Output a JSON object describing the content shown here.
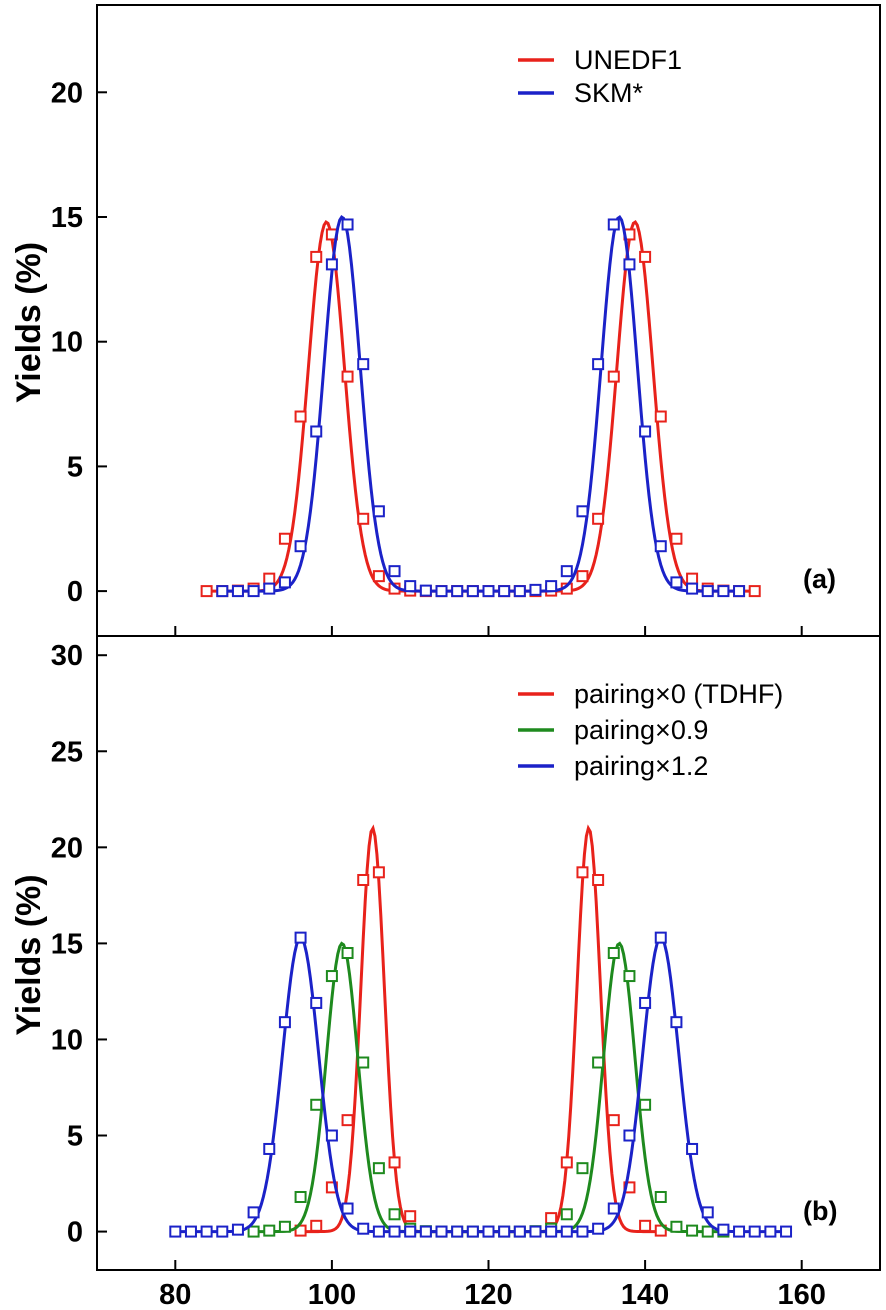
{
  "chart_data": [
    {
      "type": "line",
      "panel_label": "(a)",
      "ylabel": "Yields (%)",
      "xlabel": "",
      "xlim": [
        70,
        170
      ],
      "ylim": [
        -1.8,
        23.5
      ],
      "xticks": [
        80,
        100,
        120,
        140,
        160
      ],
      "yticks": [
        0,
        5,
        10,
        15,
        20
      ],
      "legend_position": "top-right",
      "series": [
        {
          "name": "UNEDF1",
          "color": "#e8221b",
          "peaks": [
            {
              "center": 99.3,
              "amp": 14.8,
              "sigma": 2.3
            },
            {
              "center": 138.7,
              "amp": 14.8,
              "sigma": 2.3
            }
          ],
          "markers_x": [
            84,
            86,
            88,
            90,
            92,
            94,
            96,
            98,
            100,
            102,
            104,
            106,
            108,
            110,
            112,
            114,
            116,
            118,
            120,
            122,
            124,
            126,
            128,
            130,
            132,
            134,
            136,
            138,
            140,
            142,
            144,
            146,
            148,
            150,
            152,
            154
          ],
          "markers_y": [
            0,
            0,
            0.02,
            0.1,
            0.5,
            2.1,
            7.0,
            13.4,
            14.3,
            8.6,
            2.9,
            0.6,
            0.1,
            0.02,
            0,
            0,
            0,
            0,
            0,
            0,
            0,
            0,
            0.02,
            0.1,
            0.6,
            2.9,
            8.6,
            14.3,
            13.4,
            7.0,
            2.1,
            0.5,
            0.1,
            0.02,
            0,
            0
          ]
        },
        {
          "name": "SKM*",
          "color": "#1b22c8",
          "peaks": [
            {
              "center": 101.3,
              "amp": 15.0,
              "sigma": 2.3
            },
            {
              "center": 136.7,
              "amp": 15.0,
              "sigma": 2.3
            }
          ],
          "markers_x": [
            86,
            88,
            90,
            92,
            94,
            96,
            98,
            100,
            102,
            104,
            106,
            108,
            110,
            112,
            114,
            116,
            118,
            120,
            122,
            124,
            126,
            128,
            130,
            132,
            134,
            136,
            138,
            140,
            142,
            144,
            146,
            148,
            150,
            152
          ],
          "markers_y": [
            0,
            0,
            0,
            0.1,
            0.35,
            1.8,
            6.4,
            13.1,
            14.7,
            9.1,
            3.2,
            0.8,
            0.2,
            0.02,
            0,
            0,
            0,
            0,
            0,
            0,
            0.05,
            0.2,
            0.8,
            3.2,
            9.1,
            14.7,
            13.1,
            6.4,
            1.8,
            0.35,
            0.1,
            0,
            0,
            0
          ]
        }
      ]
    },
    {
      "type": "line",
      "panel_label": "(b)",
      "ylabel": "Yields (%)",
      "xlabel": "",
      "xlim": [
        70,
        170
      ],
      "ylim": [
        -2,
        31
      ],
      "xticks": [
        80,
        100,
        120,
        140,
        160
      ],
      "yticks": [
        0,
        5,
        10,
        15,
        20,
        25,
        30
      ],
      "legend_position": "top-right",
      "series": [
        {
          "name": "pairing×0 (TDHF)",
          "color": "#e8221b",
          "peaks": [
            {
              "center": 105.2,
              "amp": 21.0,
              "sigma": 1.5
            },
            {
              "center": 132.8,
              "amp": 21.0,
              "sigma": 1.5
            }
          ],
          "markers_x": [
            96,
            98,
            100,
            102,
            104,
            106,
            108,
            110,
            128,
            130,
            132,
            134,
            136,
            138,
            140,
            142
          ],
          "markers_y": [
            0.05,
            0.3,
            2.3,
            5.8,
            18.3,
            18.7,
            3.6,
            0.8,
            0.7,
            3.6,
            18.7,
            18.3,
            5.8,
            2.3,
            0.3,
            0.05
          ]
        },
        {
          "name": "pairing×0.9",
          "color": "#1e8a1e",
          "peaks": [
            {
              "center": 101.3,
              "amp": 15.0,
              "sigma": 2.0
            },
            {
              "center": 136.7,
              "amp": 15.0,
              "sigma": 2.0
            }
          ],
          "markers_x": [
            90,
            92,
            94,
            96,
            98,
            100,
            102,
            104,
            106,
            108,
            110,
            112,
            114,
            116,
            118,
            120,
            122,
            124,
            126,
            128,
            130,
            132,
            134,
            136,
            138,
            140,
            142,
            144,
            146,
            148,
            150
          ],
          "markers_y": [
            0,
            0.05,
            0.25,
            1.8,
            6.6,
            13.3,
            14.5,
            8.8,
            3.3,
            0.9,
            0.15,
            0.02,
            0,
            0,
            0,
            0,
            0,
            0,
            0.02,
            0.15,
            0.9,
            3.3,
            8.8,
            14.5,
            13.3,
            6.6,
            1.8,
            0.25,
            0.05,
            0,
            0
          ]
        },
        {
          "name": "pairing×1.2",
          "color": "#1b22c8",
          "peaks": [
            {
              "center": 96.0,
              "amp": 15.3,
              "sigma": 2.3
            },
            {
              "center": 142.0,
              "amp": 15.3,
              "sigma": 2.3
            }
          ],
          "markers_x": [
            80,
            82,
            84,
            86,
            88,
            90,
            92,
            94,
            96,
            98,
            100,
            102,
            104,
            106,
            108,
            110,
            112,
            114,
            116,
            118,
            120,
            122,
            124,
            126,
            128,
            130,
            132,
            134,
            136,
            138,
            140,
            142,
            144,
            146,
            148,
            150,
            152,
            154,
            156,
            158
          ],
          "markers_y": [
            0,
            0,
            0,
            0,
            0.1,
            1.0,
            4.3,
            10.9,
            15.3,
            11.9,
            5.0,
            1.2,
            0.15,
            0,
            0,
            0,
            0,
            0,
            0,
            0,
            0,
            0,
            0,
            0,
            0,
            0,
            0,
            0.15,
            1.2,
            5.0,
            11.9,
            15.3,
            10.9,
            4.3,
            1.0,
            0.1,
            0,
            0,
            0,
            0
          ]
        }
      ]
    }
  ]
}
